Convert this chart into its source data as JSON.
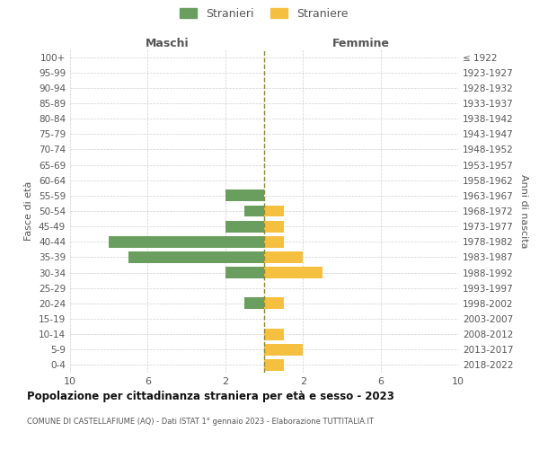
{
  "age_groups": [
    "100+",
    "95-99",
    "90-94",
    "85-89",
    "80-84",
    "75-79",
    "70-74",
    "65-69",
    "60-64",
    "55-59",
    "50-54",
    "45-49",
    "40-44",
    "35-39",
    "30-34",
    "25-29",
    "20-24",
    "15-19",
    "10-14",
    "5-9",
    "0-4"
  ],
  "birth_years": [
    "≤ 1922",
    "1923-1927",
    "1928-1932",
    "1933-1937",
    "1938-1942",
    "1943-1947",
    "1948-1952",
    "1953-1957",
    "1958-1962",
    "1963-1967",
    "1968-1972",
    "1973-1977",
    "1978-1982",
    "1983-1987",
    "1988-1992",
    "1993-1997",
    "1998-2002",
    "2003-2007",
    "2008-2012",
    "2013-2017",
    "2018-2022"
  ],
  "males": [
    0,
    0,
    0,
    0,
    0,
    0,
    0,
    0,
    0,
    2,
    1,
    2,
    8,
    7,
    2,
    0,
    1,
    0,
    0,
    0,
    0
  ],
  "females": [
    0,
    0,
    0,
    0,
    0,
    0,
    0,
    0,
    0,
    0,
    1,
    1,
    1,
    2,
    3,
    0,
    1,
    0,
    1,
    2,
    1
  ],
  "male_color": "#6a9e5e",
  "female_color": "#f5c040",
  "dashed_line_color": "#8b8b3a",
  "title": "Popolazione per cittadinanza straniera per età e sesso - 2023",
  "subtitle": "COMUNE DI CASTELLAFIUME (AQ) - Dati ISTAT 1° gennaio 2023 - Elaborazione TUTTITALIA.IT",
  "ylabel_left": "Fasce di età",
  "ylabel_right": "Anni di nascita",
  "xlabel_maschi": "Maschi",
  "xlabel_femmine": "Femmine",
  "legend_male": "Stranieri",
  "legend_female": "Straniere",
  "xlim": 10,
  "background_color": "#ffffff",
  "grid_color": "#d0d0d0"
}
